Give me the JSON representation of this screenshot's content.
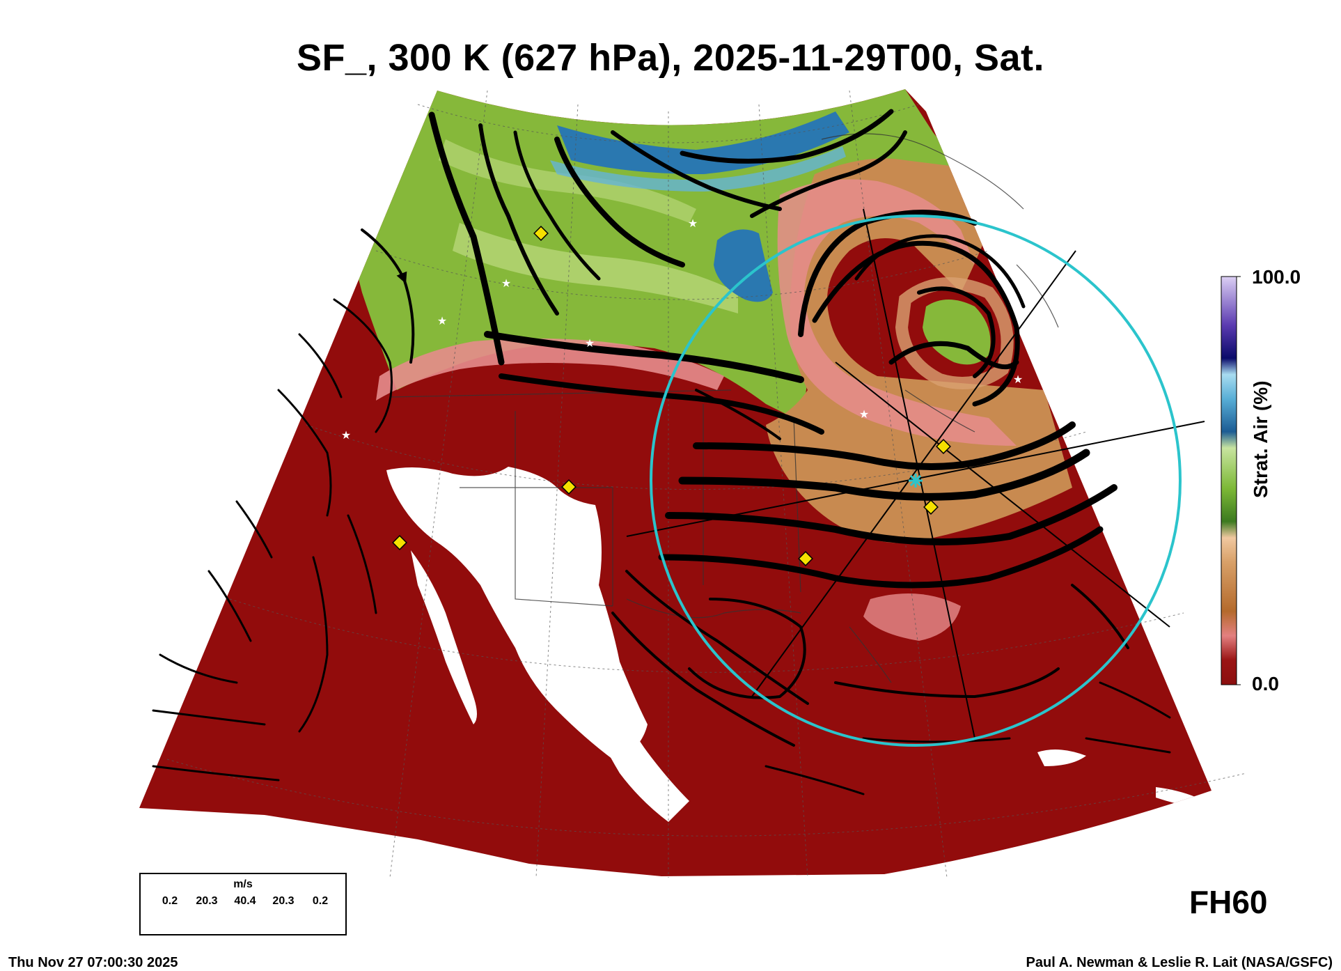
{
  "title": "SF_, 300 K (627 hPa), 2025-11-29T00, Sat.",
  "colorbar": {
    "label": "Strat. Air (%)",
    "max_label": "100.0",
    "min_label": "0.0",
    "colors": [
      "#8b0f0f",
      "#a81e1e",
      "#e07a7a",
      "#b86a2a",
      "#d9a070",
      "#f0c8a0",
      "#4a8a2a",
      "#8ac040",
      "#c8e0a0",
      "#1f6aa0",
      "#5ab0d8",
      "#a0d8f0",
      "#1a1a8a",
      "#4a2aa0",
      "#9070d0",
      "#d0c0f0"
    ]
  },
  "forecast_hour": "FH60",
  "wind_legend": {
    "unit": "m/s",
    "ticks": [
      "0.2",
      "20.3",
      "40.4",
      "20.3",
      "0.2"
    ]
  },
  "footer": {
    "timestamp": "Thu Nov 27 07:00:30 2025",
    "credit": "Paul A. Newman & Leslie R. Lait (NASA/GSFC)"
  },
  "map_colors": {
    "tropospheric": "#920c0c",
    "boundary_pink": "#e68c8c",
    "transition_tan": "#c88a50",
    "stratospheric_green": "#86b83a",
    "light_green": "#b6d678",
    "deep_blue": "#2a78b0",
    "light_blue": "#64b4d6",
    "streamline": "#000000",
    "circle": "#2bc4cc",
    "marker": "#f5e000"
  }
}
